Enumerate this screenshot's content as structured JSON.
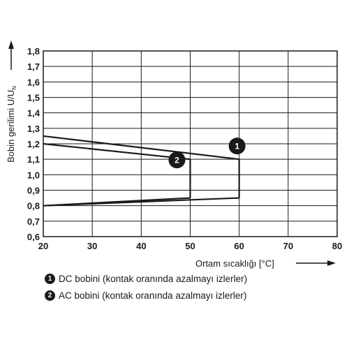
{
  "chart_data": {
    "type": "line",
    "xlabel": "Ortam sıcaklığı [°C]",
    "ylabel": "Bobin gerilimi U/U",
    "ylabel_subscript": "N",
    "xlim": [
      20,
      80
    ],
    "ylim": [
      0.6,
      1.8
    ],
    "x_ticks": [
      "20",
      "30",
      "40",
      "50",
      "60",
      "70",
      "80"
    ],
    "y_ticks": [
      "0,6",
      "0,7",
      "0,8",
      "0,9",
      "1,0",
      "1,1",
      "1,2",
      "1,3",
      "1,4",
      "1,5",
      "1,6",
      "1,7",
      "1,8"
    ],
    "grid": true,
    "series": [
      {
        "marker": "1",
        "upper": [
          [
            20,
            1.25
          ],
          [
            60,
            1.1
          ]
        ],
        "lower": [
          [
            20,
            0.8
          ],
          [
            60,
            0.85
          ]
        ],
        "closing": [
          [
            60,
            1.1
          ],
          [
            60,
            0.85
          ]
        ]
      },
      {
        "marker": "2",
        "upper": [
          [
            20,
            1.2
          ],
          [
            50,
            1.1
          ]
        ],
        "lower": [
          [
            20,
            0.8
          ],
          [
            50,
            0.85
          ]
        ],
        "closing": [
          [
            50,
            1.1
          ],
          [
            50,
            0.85
          ]
        ]
      }
    ],
    "legend": [
      {
        "marker": "1",
        "text": "DC bobini (kontak oranında azalmayı izlerler)"
      },
      {
        "marker": "2",
        "text": "AC bobini (kontak oranında azalmayı izlerler)"
      }
    ]
  }
}
